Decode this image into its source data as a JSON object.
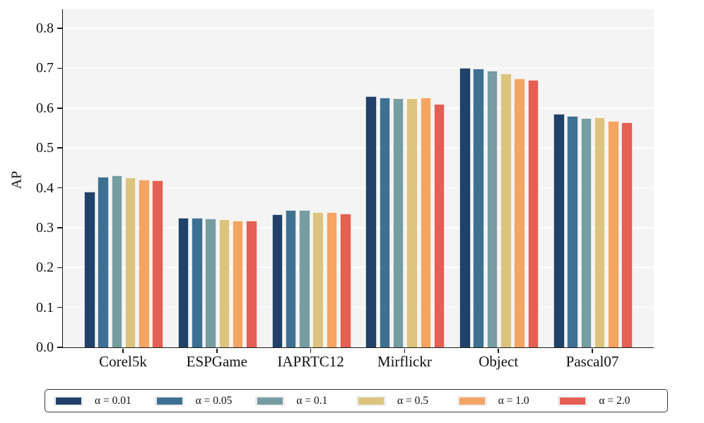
{
  "figure": {
    "background": "#ffffff",
    "plot_background": "#f4f4f4",
    "grid_color": "#ffffff",
    "axis_color": "#1a1a1a"
  },
  "chart_data": {
    "type": "bar",
    "title": "",
    "xlabel": "",
    "ylabel": "AP",
    "categories": [
      "Corel5k",
      "ESPGame",
      "IAPRTC12",
      "Mirflickr",
      "Object",
      "Pascal07"
    ],
    "series": [
      {
        "name": "α = 0.01",
        "color": "#204169",
        "values": [
          0.39,
          0.325,
          0.334,
          0.63,
          0.7,
          0.585
        ]
      },
      {
        "name": "α = 0.05",
        "color": "#3d7093",
        "values": [
          0.428,
          0.324,
          0.344,
          0.626,
          0.699,
          0.58
        ]
      },
      {
        "name": "α = 0.1",
        "color": "#769da1",
        "values": [
          0.432,
          0.323,
          0.344,
          0.625,
          0.693,
          0.575
        ]
      },
      {
        "name": "α = 0.5",
        "color": "#dcc47e",
        "values": [
          0.425,
          0.321,
          0.338,
          0.624,
          0.687,
          0.577
        ]
      },
      {
        "name": "α = 1.0",
        "color": "#f4a463",
        "values": [
          0.421,
          0.317,
          0.339,
          0.627,
          0.674,
          0.567
        ]
      },
      {
        "name": "α = 2.0",
        "color": "#e55f53",
        "values": [
          0.419,
          0.318,
          0.336,
          0.61,
          0.67,
          0.565
        ]
      }
    ],
    "ylim": [
      0,
      0.848
    ],
    "yticks": [
      0.0,
      0.1,
      0.2,
      0.3,
      0.4,
      0.5,
      0.6,
      0.7,
      0.8
    ],
    "grid": true,
    "legend_position": "bottom"
  }
}
